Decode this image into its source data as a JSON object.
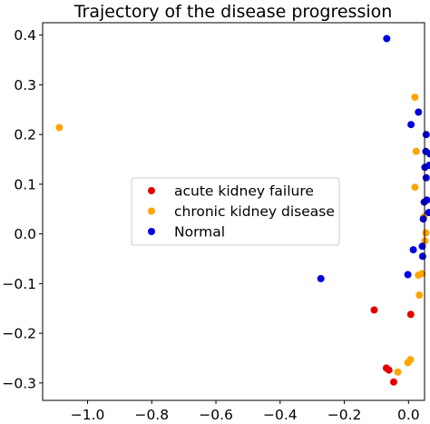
{
  "chart_data": {
    "type": "scatter",
    "title": "Trajectory of the disease progression",
    "xlabel": "",
    "ylabel": "",
    "xlim": [
      -1.14,
      0.05
    ],
    "ylim": [
      -0.335,
      0.425
    ],
    "x_ticks": [
      -1.0,
      -0.8,
      -0.6,
      -0.4,
      -0.2,
      0.0
    ],
    "x_tick_labels": [
      "−1.0",
      "−0.8",
      "−0.6",
      "−0.4",
      "−0.2",
      "0.0"
    ],
    "y_ticks": [
      -0.3,
      -0.2,
      -0.1,
      0.0,
      0.1,
      0.2,
      0.3,
      0.4
    ],
    "y_tick_labels": [
      "−0.3",
      "−0.2",
      "−0.1",
      "0.0",
      "0.1",
      "0.2",
      "0.3",
      "0.4"
    ],
    "grid": false,
    "legend_position": "center-left",
    "series": [
      {
        "name": "acute kidney failure",
        "color": "#e50000",
        "points": [
          [
            -0.107,
            -0.153
          ],
          [
            0.007,
            -0.162
          ],
          [
            -0.069,
            -0.27
          ],
          [
            -0.061,
            -0.274
          ],
          [
            -0.046,
            -0.298
          ]
        ]
      },
      {
        "name": "chronic kidney disease",
        "color": "#ffa500",
        "points": [
          [
            -1.088,
            0.214
          ],
          [
            0.02,
            0.275
          ],
          [
            0.024,
            0.166
          ],
          [
            0.02,
            0.094
          ],
          [
            0.048,
            0.034
          ],
          [
            0.054,
            0.002
          ],
          [
            0.051,
            -0.014
          ],
          [
            0.042,
            -0.08
          ],
          [
            0.031,
            -0.083
          ],
          [
            0.034,
            -0.123
          ],
          [
            0.006,
            -0.253
          ],
          [
            -0.002,
            -0.259
          ],
          [
            -0.033,
            -0.278
          ]
        ]
      },
      {
        "name": "Normal",
        "color": "#0000e0",
        "points": [
          [
            -0.068,
            0.393
          ],
          [
            0.031,
            0.245
          ],
          [
            0.008,
            0.22
          ],
          [
            0.055,
            0.2
          ],
          [
            0.054,
            0.166
          ],
          [
            0.067,
            0.161
          ],
          [
            0.051,
            0.134
          ],
          [
            0.064,
            0.138
          ],
          [
            0.055,
            0.113
          ],
          [
            0.049,
            0.064
          ],
          [
            0.057,
            0.068
          ],
          [
            0.046,
            0.03
          ],
          [
            0.063,
            0.043
          ],
          [
            0.015,
            -0.032
          ],
          [
            0.044,
            -0.045
          ],
          [
            0.043,
            -0.025
          ],
          [
            -0.002,
            -0.082
          ],
          [
            -0.273,
            -0.09
          ]
        ]
      }
    ]
  }
}
